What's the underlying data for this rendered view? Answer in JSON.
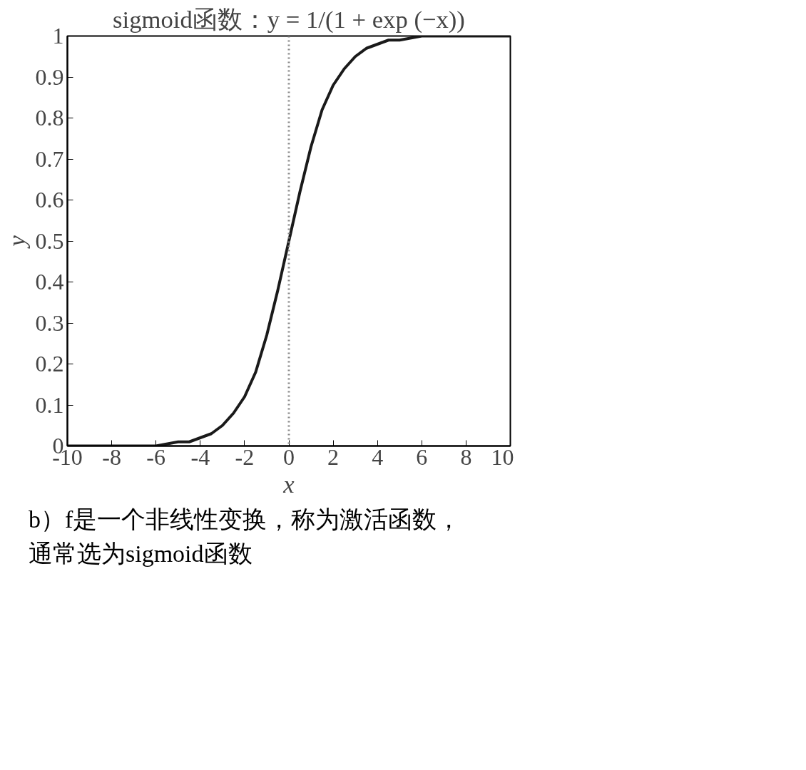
{
  "chart_data": {
    "type": "line",
    "title": "sigmoid函数：y = 1/(1 + exp (−x))",
    "xlabel": "x",
    "ylabel": "y",
    "x": [
      -10,
      -9,
      -8,
      -7,
      -6,
      -5,
      -4.5,
      -4,
      -3.5,
      -3,
      -2.5,
      -2,
      -1.5,
      -1,
      -0.5,
      0,
      0.5,
      1,
      1.5,
      2,
      2.5,
      3,
      3.5,
      4,
      4.5,
      5,
      6,
      7,
      8,
      9,
      10
    ],
    "series": [
      {
        "color": "#1a1a1a",
        "values": [
          0.0,
          0.0,
          0.0,
          0.0,
          0.0,
          0.01,
          0.01,
          0.02,
          0.03,
          0.05,
          0.08,
          0.12,
          0.18,
          0.27,
          0.38,
          0.5,
          0.62,
          0.73,
          0.82,
          0.88,
          0.92,
          0.95,
          0.97,
          0.98,
          0.99,
          0.99,
          1.0,
          1.0,
          1.0,
          1.0,
          1.0
        ]
      }
    ],
    "xlim": [
      -10,
      10
    ],
    "ylim": [
      0,
      1
    ],
    "xticks": [
      -10,
      -8,
      -6,
      -4,
      -2,
      0,
      2,
      4,
      6,
      8,
      10
    ],
    "yticks": [
      0,
      0.1,
      0.2,
      0.3,
      0.4,
      0.5,
      0.6,
      0.7,
      0.8,
      0.9,
      1
    ],
    "ref_lines": [
      {
        "axis": "x",
        "value": 0,
        "color": "#888888",
        "line_style": "dotted"
      }
    ],
    "annotations": [
      "b）f是一个非线性变换，称为激活函数，通常选为sigmoid函数"
    ],
    "grid": false,
    "marker": "none",
    "line_style": "solid"
  }
}
